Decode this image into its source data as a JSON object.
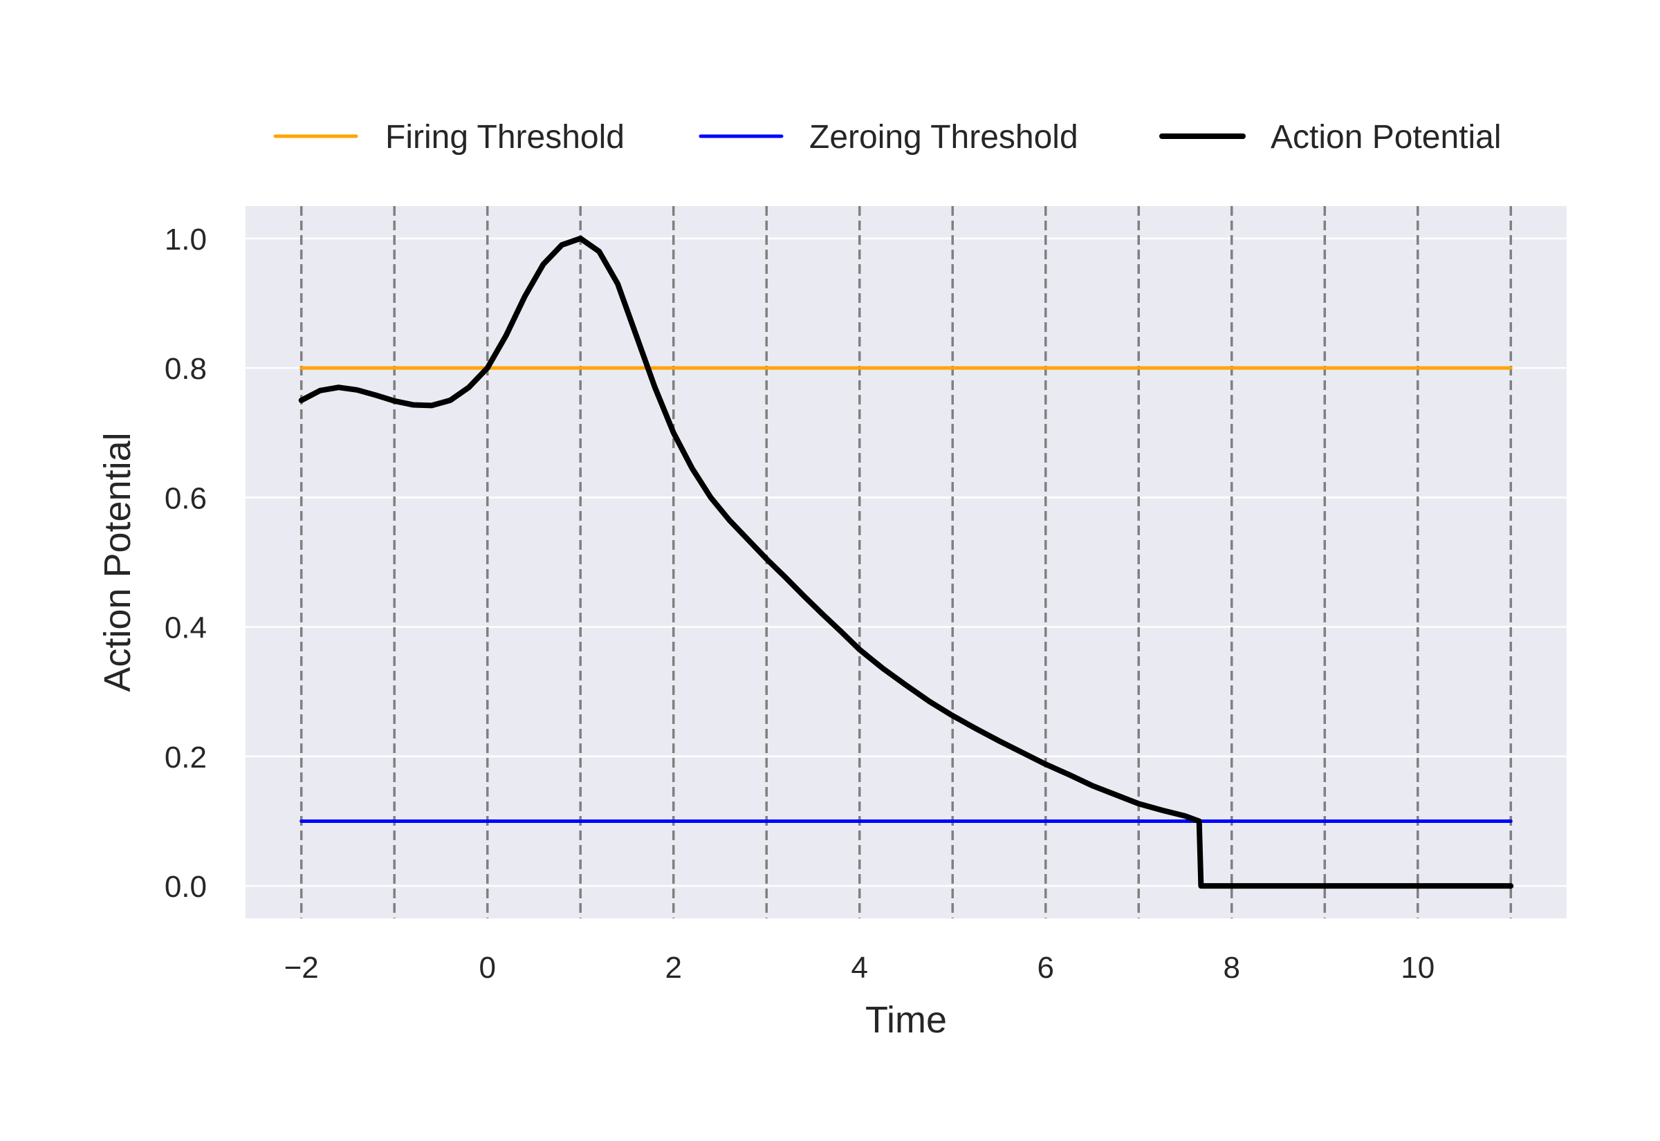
{
  "chart_data": {
    "type": "line",
    "title": "",
    "xlabel": "Time",
    "ylabel": "Action Potential",
    "xlim": [
      -2.6,
      11.6
    ],
    "ylim": [
      -0.05,
      1.05
    ],
    "x_ticks": [
      {
        "value": -2,
        "label": "−2"
      },
      {
        "value": 0,
        "label": "0"
      },
      {
        "value": 2,
        "label": "2"
      },
      {
        "value": 4,
        "label": "4"
      },
      {
        "value": 6,
        "label": "6"
      },
      {
        "value": 8,
        "label": "8"
      },
      {
        "value": 10,
        "label": "10"
      }
    ],
    "y_ticks": [
      {
        "value": 0.0,
        "label": "0.0"
      },
      {
        "value": 0.2,
        "label": "0.2"
      },
      {
        "value": 0.4,
        "label": "0.4"
      },
      {
        "value": 0.6,
        "label": "0.6"
      },
      {
        "value": 0.8,
        "label": "0.8"
      },
      {
        "value": 1.0,
        "label": "1.0"
      }
    ],
    "vertical_dashed_lines": [
      -2,
      -1,
      0,
      1,
      2,
      3,
      4,
      5,
      6,
      7,
      8,
      9,
      10,
      11
    ],
    "grid": true,
    "background": "#eaeaf2",
    "legend": {
      "placement": "top-center, above plot",
      "columns": 3
    },
    "series": [
      {
        "name": "Firing Threshold",
        "color": "#ffa500",
        "style": "solid",
        "x": [
          -2,
          11
        ],
        "y": [
          0.8,
          0.8
        ]
      },
      {
        "name": "Zeroing Threshold",
        "color": "#0000ff",
        "style": "solid",
        "x": [
          -2,
          11
        ],
        "y": [
          0.1,
          0.1
        ]
      },
      {
        "name": "Action Potential",
        "color": "#000000",
        "style": "solid-thick",
        "x": [
          -2,
          -1.8,
          -1.6,
          -1.4,
          -1.2,
          -1.0,
          -0.8,
          -0.6,
          -0.4,
          -0.2,
          0,
          0.2,
          0.4,
          0.6,
          0.8,
          1.0,
          1.2,
          1.4,
          1.6,
          1.8,
          2.0,
          2.2,
          2.4,
          2.6,
          2.8,
          3.0,
          3.2,
          3.4,
          3.6,
          3.8,
          4.0,
          4.25,
          4.5,
          4.75,
          5.0,
          5.25,
          5.5,
          5.75,
          6.0,
          6.25,
          6.5,
          6.75,
          7.0,
          7.25,
          7.5,
          7.65,
          7.67,
          8.0,
          9.0,
          10.0,
          11.0
        ],
        "y": [
          0.75,
          0.765,
          0.77,
          0.766,
          0.758,
          0.749,
          0.743,
          0.742,
          0.75,
          0.77,
          0.8,
          0.85,
          0.91,
          0.96,
          0.99,
          1.0,
          0.98,
          0.93,
          0.85,
          0.77,
          0.7,
          0.645,
          0.6,
          0.565,
          0.535,
          0.505,
          0.477,
          0.448,
          0.42,
          0.393,
          0.365,
          0.336,
          0.31,
          0.285,
          0.263,
          0.243,
          0.224,
          0.206,
          0.188,
          0.172,
          0.155,
          0.141,
          0.127,
          0.117,
          0.108,
          0.1,
          0.0,
          0.0,
          0.0,
          0.0,
          0.0
        ]
      }
    ]
  }
}
